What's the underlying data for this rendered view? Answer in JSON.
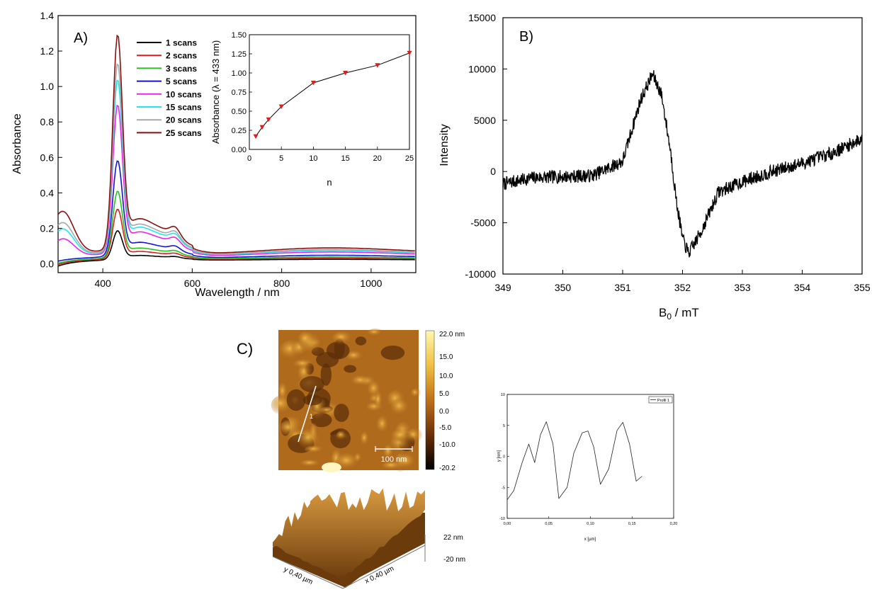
{
  "panel_labels": {
    "a": "A)",
    "b": "B)",
    "c": "C)"
  },
  "chart_data": [
    {
      "id": "A",
      "type": "line",
      "xlabel": "Wavelength / nm",
      "ylabel": "Absorbance",
      "xlim": [
        300,
        1100
      ],
      "ylim": [
        -0.05,
        1.4
      ],
      "xticks": [
        "400",
        "600",
        "800",
        "1000"
      ],
      "yticks": [
        "0.0",
        "0.2",
        "0.4",
        "0.6",
        "0.8",
        "1.0",
        "1.2",
        "1.4"
      ],
      "legend_position": "top-left",
      "series": [
        {
          "name": "1 scans",
          "color": "#000000",
          "peak433": 0.17
        },
        {
          "name": "2 scans",
          "color": "#e01b1b",
          "peak433": 0.29
        },
        {
          "name": "3 scans",
          "color": "#22c41d",
          "peak433": 0.39
        },
        {
          "name": "5 scans",
          "color": "#1414d6",
          "peak433": 0.56
        },
        {
          "name": "10 scans",
          "color": "#ee22ee",
          "peak433": 0.87
        },
        {
          "name": "15 scans",
          "color": "#22e6ec",
          "peak433": 1.01
        },
        {
          "name": "20 scans",
          "color": "#a8a8a8",
          "peak433": 1.1
        },
        {
          "name": "25 scans",
          "color": "#8b0f0f",
          "peak433": 1.26
        }
      ]
    },
    {
      "id": "A-inset",
      "type": "line",
      "xlabel": "n",
      "ylabel": "Absorbance (λ = 433 nm)",
      "xlim": [
        0,
        25
      ],
      "ylim": [
        0,
        1.5
      ],
      "xticks": [
        "0",
        "5",
        "10",
        "15",
        "20",
        "25"
      ],
      "yticks": [
        "0.00",
        "0.25",
        "0.50",
        "0.75",
        "1.00",
        "1.25",
        "1.50"
      ],
      "x": [
        1,
        2,
        3,
        5,
        10,
        15,
        20,
        25
      ],
      "y": [
        0.17,
        0.29,
        0.39,
        0.56,
        0.87,
        1.0,
        1.1,
        1.26
      ],
      "marker_color": "#e01b1b"
    },
    {
      "id": "B",
      "type": "line",
      "xlabel_main": "B",
      "xlabel_sub": "0",
      "xlabel_rest": " / mT",
      "ylabel": "Intensity",
      "xlim": [
        349,
        355
      ],
      "ylim": [
        -10000,
        15000
      ],
      "xticks": [
        "349",
        "350",
        "351",
        "352",
        "353",
        "354",
        "355"
      ],
      "yticks": [
        "-10000",
        "-5000",
        "0",
        "5000",
        "10000",
        "15000"
      ],
      "x": [
        349.0,
        349.5,
        350.0,
        350.5,
        351.0,
        351.3,
        351.5,
        351.65,
        351.8,
        351.9,
        352.0,
        352.1,
        352.3,
        352.6,
        353.0,
        353.5,
        354.0,
        354.5,
        355.0
      ],
      "y": [
        -1200,
        -600,
        -500,
        -400,
        1000,
        7000,
        9500,
        7500,
        2000,
        -3000,
        -6500,
        -8000,
        -6000,
        -2000,
        -1000,
        0,
        800,
        1800,
        3200
      ]
    },
    {
      "id": "C-profile",
      "type": "line",
      "xlabel": "x [µm]",
      "ylabel": "y [nm]",
      "xlim": [
        0,
        0.2
      ],
      "ylim": [
        -10,
        10
      ],
      "xticks": [
        "0,00",
        "0,05",
        "0,10",
        "0,15",
        "0,20"
      ],
      "yticks": [
        "-10",
        "-5",
        "0",
        "5",
        "10"
      ],
      "legend": "Profil 1",
      "x": [
        0.0,
        0.008,
        0.018,
        0.026,
        0.033,
        0.04,
        0.047,
        0.055,
        0.062,
        0.072,
        0.08,
        0.09,
        0.097,
        0.104,
        0.112,
        0.122,
        0.132,
        0.139,
        0.147,
        0.155,
        0.162
      ],
      "y": [
        -7.0,
        -5.5,
        -1.0,
        2.0,
        -1.0,
        3.5,
        5.6,
        2.0,
        -6.8,
        -5.0,
        0.5,
        3.8,
        4.1,
        1.5,
        -4.5,
        -2.0,
        4.2,
        5.5,
        2.0,
        -4.0,
        -3.2
      ]
    }
  ],
  "afm": {
    "colorbar_labels": [
      "22.0 nm",
      "15.0",
      "10.0",
      "5.0",
      "0.0",
      "-5.0",
      "-10.0",
      "-20.2"
    ],
    "scale_bar": "100 nm",
    "profile_marker": "1",
    "z_top": "22 nm",
    "z_bottom": "-20 nm",
    "x_axis_3d": "x 0,40 µm",
    "y_axis_3d": "y 0,40 µm"
  }
}
